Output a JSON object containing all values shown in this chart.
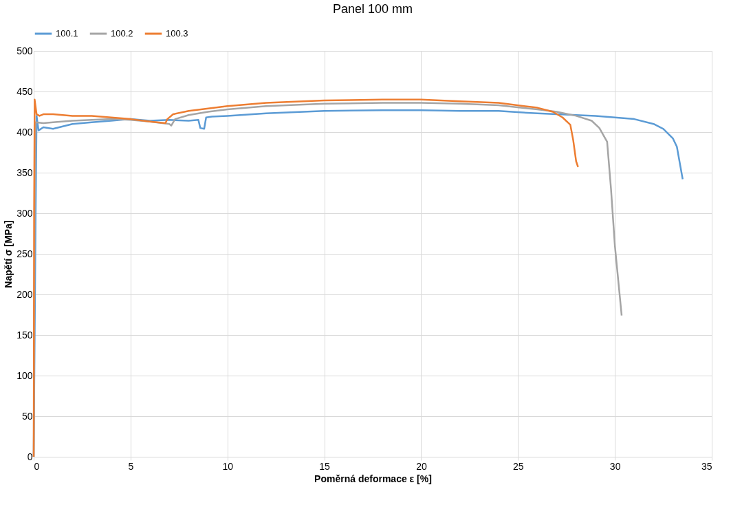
{
  "chart_data": {
    "type": "line",
    "title": "Panel 100 mm",
    "xlabel": "Poměrná deformace ε [%]",
    "ylabel": "Napětí σ [MPa]",
    "xlim": [
      0,
      35
    ],
    "xticks": [
      0,
      5,
      10,
      15,
      20,
      25,
      30,
      35
    ],
    "ylim": [
      0,
      500
    ],
    "yticks": [
      0,
      50,
      100,
      150,
      200,
      250,
      300,
      350,
      400,
      450,
      500
    ],
    "grid": true,
    "legend": "top",
    "marker": "none",
    "line_style": "solid",
    "series": [
      {
        "name": "100.1",
        "color": "#5b9bd5",
        "x": [
          0,
          0.1,
          0.15,
          0.25,
          0.5,
          1,
          1.5,
          2,
          3,
          4,
          5,
          6,
          7,
          8,
          8.5,
          8.6,
          8.8,
          8.9,
          9.2,
          10,
          12,
          15,
          18,
          20,
          22,
          24,
          26,
          27,
          29,
          30,
          31,
          32,
          32.5,
          33,
          33.2,
          33.5
        ],
        "values": [
          0,
          300,
          420,
          402,
          406,
          404,
          407,
          410,
          412,
          414,
          416,
          414,
          415,
          414,
          415,
          405,
          404,
          418,
          419,
          420,
          423,
          426,
          427,
          427,
          426,
          426,
          423,
          422,
          420,
          418,
          416,
          410,
          404,
          392,
          382,
          342
        ]
      },
      {
        "name": "100.2",
        "color": "#a5a5a5",
        "x": [
          0,
          0.05,
          0.1,
          0.5,
          1,
          2,
          3,
          4,
          5,
          6,
          7,
          7.1,
          7.3,
          8,
          9,
          10,
          12,
          15,
          18,
          20,
          22,
          24,
          26,
          27,
          28,
          28.8,
          29.2,
          29.6,
          29.8,
          30,
          30.35
        ],
        "values": [
          0,
          300,
          412,
          411,
          412,
          414,
          415,
          416,
          415,
          413,
          410,
          408,
          416,
          421,
          425,
          428,
          432,
          435,
          436,
          436,
          435,
          433,
          428,
          425,
          420,
          414,
          405,
          388,
          330,
          260,
          174
        ]
      },
      {
        "name": "100.3",
        "color": "#ed7d31",
        "x": [
          0,
          0.02,
          0.05,
          0.15,
          0.3,
          0.5,
          1,
          2,
          3,
          4,
          5,
          6,
          6.8,
          6.9,
          7.2,
          8,
          9,
          10,
          12,
          15,
          18,
          20,
          22,
          24,
          26,
          26.8,
          27.3,
          27.7,
          27.85,
          28.0,
          28.1
        ],
        "values": [
          0,
          300,
          440,
          422,
          420,
          422,
          422,
          420,
          420,
          418,
          416,
          413,
          411,
          416,
          422,
          426,
          429,
          432,
          436,
          439,
          440,
          440,
          438,
          436,
          430,
          425,
          418,
          409,
          390,
          364,
          357
        ]
      }
    ]
  }
}
